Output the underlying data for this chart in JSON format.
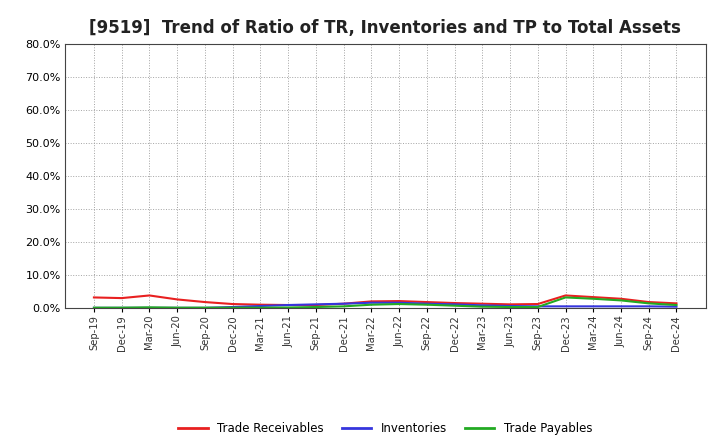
{
  "title": "[9519]  Trend of Ratio of TR, Inventories and TP to Total Assets",
  "x_labels": [
    "Sep-19",
    "Dec-19",
    "Mar-20",
    "Jun-20",
    "Sep-20",
    "Dec-20",
    "Mar-21",
    "Jun-21",
    "Sep-21",
    "Dec-21",
    "Mar-22",
    "Jun-22",
    "Sep-22",
    "Dec-22",
    "Mar-23",
    "Jun-23",
    "Sep-23",
    "Dec-23",
    "Mar-24",
    "Jun-24",
    "Sep-24",
    "Dec-24"
  ],
  "trade_receivables": [
    3.2,
    3.0,
    3.8,
    2.6,
    1.8,
    1.2,
    1.0,
    0.9,
    0.9,
    1.3,
    2.0,
    2.1,
    1.8,
    1.5,
    1.3,
    1.1,
    1.2,
    3.8,
    3.3,
    2.8,
    1.8,
    1.4
  ],
  "inventories": [
    0.05,
    0.05,
    0.05,
    0.05,
    0.05,
    0.3,
    0.6,
    0.9,
    1.1,
    1.3,
    1.6,
    1.6,
    1.3,
    1.1,
    0.8,
    0.6,
    0.5,
    0.5,
    0.5,
    0.5,
    0.5,
    0.4
  ],
  "trade_payables": [
    0.1,
    0.1,
    0.2,
    0.1,
    0.1,
    0.1,
    0.1,
    0.15,
    0.3,
    0.5,
    1.0,
    1.2,
    1.0,
    0.7,
    0.4,
    0.3,
    0.3,
    3.2,
    2.8,
    2.3,
    1.4,
    0.9
  ],
  "tr_color": "#e82020",
  "inv_color": "#3535dd",
  "tp_color": "#22aa22",
  "ylim_min": 0,
  "ylim_max": 80,
  "yticks": [
    0,
    10,
    20,
    30,
    40,
    50,
    60,
    70,
    80
  ],
  "background_color": "#ffffff",
  "plot_bg_color": "#ffffff",
  "grid_color": "#999999",
  "title_fontsize": 12,
  "legend_labels": [
    "Trade Receivables",
    "Inventories",
    "Trade Payables"
  ]
}
